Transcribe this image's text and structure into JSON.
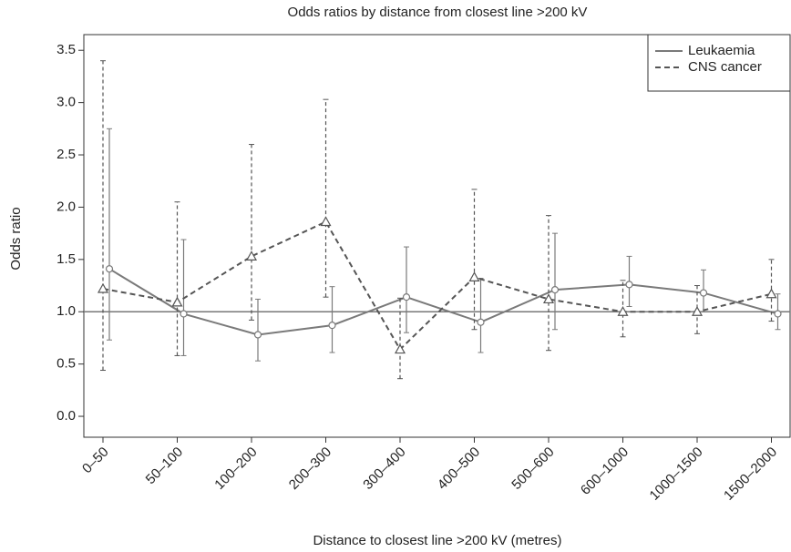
{
  "chart_data": {
    "type": "line",
    "title": "Odds ratios by distance from closest line >200 kV",
    "x_label": "Distance to closest line >200 kV (metres)",
    "y_label": "Odds ratio",
    "categories": [
      "0–50",
      "50–100",
      "100–200",
      "200–300",
      "300–400",
      "400–500",
      "500–600",
      "600–1000",
      "1000–1500",
      "1500–2000"
    ],
    "series": [
      {
        "name": "Leukaemia",
        "color": "#7a7a7a",
        "dash": false,
        "marker": "circle",
        "values": [
          1.41,
          0.98,
          0.78,
          0.87,
          1.14,
          0.9,
          1.21,
          1.26,
          1.18,
          0.98
        ],
        "lower": [
          0.73,
          0.58,
          0.53,
          0.61,
          0.8,
          0.61,
          0.83,
          1.05,
          1.0,
          0.83
        ],
        "upper": [
          2.75,
          1.69,
          1.12,
          1.24,
          1.62,
          1.32,
          1.75,
          1.53,
          1.4,
          1.17
        ]
      },
      {
        "name": "CNS cancer",
        "color": "#555555",
        "dash": true,
        "marker": "triangle",
        "values": [
          1.22,
          1.09,
          1.53,
          1.86,
          0.64,
          1.33,
          1.12,
          1.0,
          1.0,
          1.17
        ],
        "lower": [
          0.44,
          0.58,
          0.92,
          1.14,
          0.36,
          0.83,
          0.63,
          0.76,
          0.79,
          0.91
        ],
        "upper": [
          3.4,
          2.05,
          2.6,
          3.03,
          1.13,
          2.17,
          1.92,
          1.3,
          1.25,
          1.5
        ]
      }
    ],
    "reference_line": 1.0,
    "ylim": [
      -0.2,
      3.65
    ],
    "yticks": [
      {
        "value": 0,
        "label": "0.0"
      },
      0.5,
      {
        "value": 1,
        "label": "1.0"
      },
      1.5,
      {
        "value": 2,
        "label": "2.0"
      },
      2.5,
      {
        "value": 3,
        "label": "3.0"
      },
      3.5
    ],
    "legend": "top-right"
  }
}
